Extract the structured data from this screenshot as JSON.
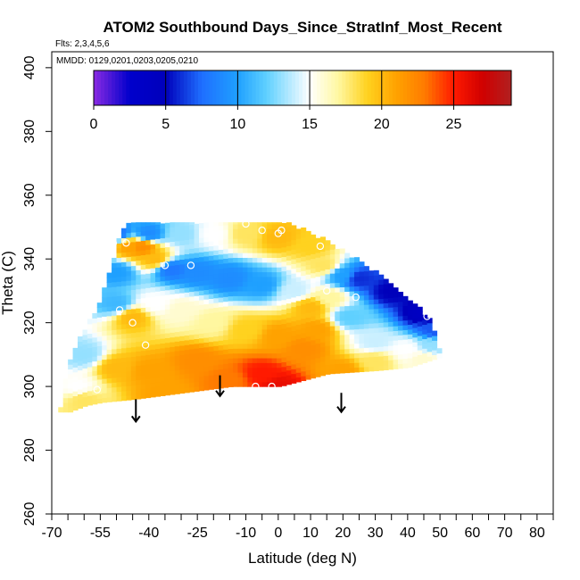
{
  "chart_data": {
    "type": "heatmap",
    "title": "ATOM2 Southbound Days_Since_StratInf_Most_Recent",
    "flights_note": "Flts: 2,3,4,5,6",
    "dates_note": "MMDD: 0129,0201,0203,0205,0210",
    "xlabel": "Latitude (deg N)",
    "ylabel": "Theta (C)",
    "xlim": [
      -70,
      85
    ],
    "ylim": [
      260,
      405
    ],
    "x_ticks": [
      -70,
      -55,
      -40,
      -25,
      -10,
      0,
      10,
      20,
      30,
      40,
      50,
      60,
      70,
      80
    ],
    "x_minor_ticks": [
      -65,
      -60,
      -50,
      -45,
      -35,
      -30,
      -20,
      -15,
      -5,
      5,
      15,
      25,
      35,
      45,
      55,
      65,
      75,
      85
    ],
    "y_ticks": [
      260,
      280,
      300,
      320,
      340,
      360,
      380,
      400
    ],
    "colorbar": {
      "min": 0,
      "max": 29,
      "ticks": [
        0,
        5,
        10,
        15,
        20,
        25
      ],
      "stops": [
        {
          "v": 0,
          "c": "#8a2be2"
        },
        {
          "v": 2.5,
          "c": "#0000cc"
        },
        {
          "v": 5,
          "c": "#0000bb"
        },
        {
          "v": 7.5,
          "c": "#1f6fff"
        },
        {
          "v": 10,
          "c": "#1fa0ff"
        },
        {
          "v": 12,
          "c": "#5fd0ff"
        },
        {
          "v": 15,
          "c": "#ffffff"
        },
        {
          "v": 17,
          "c": "#fff7a0"
        },
        {
          "v": 19,
          "c": "#ffd21f"
        },
        {
          "v": 21,
          "c": "#ffa200"
        },
        {
          "v": 23,
          "c": "#ff7a00"
        },
        {
          "v": 25,
          "c": "#ff1a00"
        },
        {
          "v": 27,
          "c": "#d00000"
        },
        {
          "v": 29,
          "c": "#b02020"
        }
      ]
    },
    "field_shape": {
      "top_theta": 351,
      "bottom_theta_by_lat": [
        [
          -65,
          292
        ],
        [
          -60,
          294
        ],
        [
          -55,
          295
        ],
        [
          -45,
          296
        ],
        [
          -30,
          298
        ],
        [
          -15,
          300
        ],
        [
          0,
          300
        ],
        [
          15,
          304
        ],
        [
          30,
          305
        ],
        [
          40,
          306
        ],
        [
          49,
          309
        ]
      ],
      "top_lat_limit": [
        [
          351,
          -48,
          2
        ],
        [
          345,
          -50,
          14
        ],
        [
          335,
          -53,
          30
        ],
        [
          325,
          -56,
          42
        ],
        [
          320,
          -59,
          46
        ],
        [
          315,
          -62,
          48
        ],
        [
          308,
          -65,
          50
        ],
        [
          300,
          -67,
          50
        ],
        [
          292,
          -68,
          50
        ]
      ]
    },
    "field_centers": [
      {
        "lat": -50,
        "theta": 348,
        "value": 8
      },
      {
        "lat": -40,
        "theta": 348,
        "value": 9
      },
      {
        "lat": -30,
        "theta": 348,
        "value": 13
      },
      {
        "lat": -20,
        "theta": 348,
        "value": 15
      },
      {
        "lat": -10,
        "theta": 348,
        "value": 18
      },
      {
        "lat": 0,
        "theta": 347,
        "value": 20
      },
      {
        "lat": 10,
        "theta": 344,
        "value": 19
      },
      {
        "lat": 14,
        "theta": 338,
        "value": 18
      },
      {
        "lat": 20,
        "theta": 335,
        "value": 10
      },
      {
        "lat": 25,
        "theta": 334,
        "value": 6
      },
      {
        "lat": 35,
        "theta": 330,
        "value": 5
      },
      {
        "lat": 45,
        "theta": 323,
        "value": 4
      },
      {
        "lat": 48,
        "theta": 318,
        "value": 7
      },
      {
        "lat": 47,
        "theta": 313,
        "value": 13
      },
      {
        "lat": 40,
        "theta": 312,
        "value": 15
      },
      {
        "lat": 30,
        "theta": 314,
        "value": 14
      },
      {
        "lat": 22,
        "theta": 322,
        "value": 12
      },
      {
        "lat": 16,
        "theta": 328,
        "value": 17
      },
      {
        "lat": 10,
        "theta": 325,
        "value": 20
      },
      {
        "lat": 5,
        "theta": 330,
        "value": 14
      },
      {
        "lat": -5,
        "theta": 332,
        "value": 10
      },
      {
        "lat": -15,
        "theta": 334,
        "value": 9
      },
      {
        "lat": -25,
        "theta": 336,
        "value": 9
      },
      {
        "lat": -33,
        "theta": 337,
        "value": 8
      },
      {
        "lat": -38,
        "theta": 340,
        "value": 20
      },
      {
        "lat": -42,
        "theta": 344,
        "value": 22
      },
      {
        "lat": -46,
        "theta": 344,
        "value": 21
      },
      {
        "lat": -50,
        "theta": 336,
        "value": 10
      },
      {
        "lat": -50,
        "theta": 326,
        "value": 11
      },
      {
        "lat": -45,
        "theta": 322,
        "value": 20
      },
      {
        "lat": -38,
        "theta": 326,
        "value": 15
      },
      {
        "lat": -30,
        "theta": 324,
        "value": 16
      },
      {
        "lat": -20,
        "theta": 320,
        "value": 17
      },
      {
        "lat": -10,
        "theta": 318,
        "value": 19
      },
      {
        "lat": 0,
        "theta": 316,
        "value": 21
      },
      {
        "lat": 8,
        "theta": 312,
        "value": 22
      },
      {
        "lat": 12,
        "theta": 318,
        "value": 21
      },
      {
        "lat": 30,
        "theta": 308,
        "value": 18
      },
      {
        "lat": 45,
        "theta": 309,
        "value": 16
      },
      {
        "lat": -60,
        "theta": 310,
        "value": 13
      },
      {
        "lat": -62,
        "theta": 300,
        "value": 15
      },
      {
        "lat": -60,
        "theta": 296,
        "value": 18
      },
      {
        "lat": -50,
        "theta": 306,
        "value": 20
      },
      {
        "lat": -40,
        "theta": 305,
        "value": 21
      },
      {
        "lat": -35,
        "theta": 298,
        "value": 21
      },
      {
        "lat": -25,
        "theta": 308,
        "value": 22
      },
      {
        "lat": -15,
        "theta": 302,
        "value": 23
      },
      {
        "lat": -5,
        "theta": 304,
        "value": 25
      },
      {
        "lat": 0,
        "theta": 300,
        "value": 26
      },
      {
        "lat": 20,
        "theta": 305,
        "value": 21
      }
    ],
    "markers": [
      {
        "lat": -51,
        "theta": 345
      },
      {
        "lat": -47,
        "theta": 345
      },
      {
        "lat": -35,
        "theta": 338
      },
      {
        "lat": -27,
        "theta": 338
      },
      {
        "lat": -10,
        "theta": 351
      },
      {
        "lat": -5,
        "theta": 349
      },
      {
        "lat": 0,
        "theta": 348
      },
      {
        "lat": 1,
        "theta": 349
      },
      {
        "lat": 13,
        "theta": 344
      },
      {
        "lat": 15,
        "theta": 330
      },
      {
        "lat": 24,
        "theta": 328
      },
      {
        "lat": -49,
        "theta": 324
      },
      {
        "lat": -45,
        "theta": 320
      },
      {
        "lat": -41,
        "theta": 313
      },
      {
        "lat": -56,
        "theta": 299
      },
      {
        "lat": -2,
        "theta": 300
      },
      {
        "lat": -7,
        "theta": 300
      },
      {
        "lat": 46,
        "theta": 322
      }
    ],
    "arrows": [
      {
        "lat": -44,
        "theta_top": 296,
        "theta_bottom": 289
      },
      {
        "lat": -18,
        "theta_top": 303.5,
        "theta_bottom": 297
      },
      {
        "lat": 19.5,
        "theta_top": 298,
        "theta_bottom": 292
      }
    ]
  }
}
